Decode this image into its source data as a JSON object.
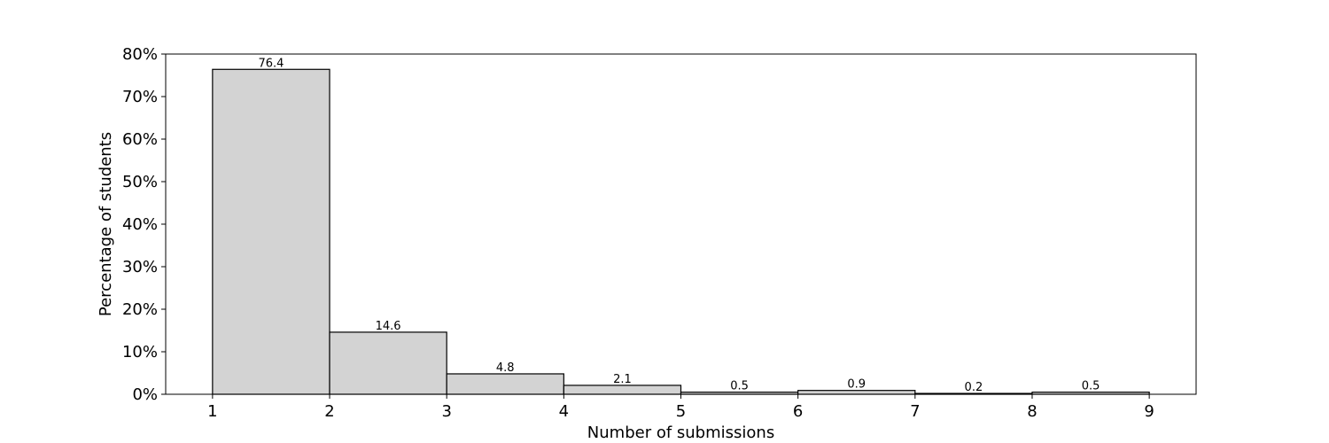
{
  "chart_data": {
    "type": "bar",
    "title": "",
    "xlabel": "Number of submissions",
    "ylabel": "Percentage of students",
    "bins": [
      {
        "start": 1,
        "end": 2,
        "value": 76.4,
        "label": "76.4"
      },
      {
        "start": 2,
        "end": 3,
        "value": 14.6,
        "label": "14.6"
      },
      {
        "start": 3,
        "end": 4,
        "value": 4.8,
        "label": "4.8"
      },
      {
        "start": 4,
        "end": 5,
        "value": 2.1,
        "label": "2.1"
      },
      {
        "start": 5,
        "end": 6,
        "value": 0.5,
        "label": "0.5"
      },
      {
        "start": 6,
        "end": 7,
        "value": 0.9,
        "label": "0.9"
      },
      {
        "start": 7,
        "end": 8,
        "value": 0.2,
        "label": "0.2"
      },
      {
        "start": 8,
        "end": 9,
        "value": 0.5,
        "label": "0.5"
      }
    ],
    "x_ticks": [
      1,
      2,
      3,
      4,
      5,
      6,
      7,
      8,
      9
    ],
    "y_ticks": [
      0,
      10,
      20,
      30,
      40,
      50,
      60,
      70,
      80
    ],
    "y_tick_labels": [
      "0%",
      "10%",
      "20%",
      "30%",
      "40%",
      "50%",
      "60%",
      "70%",
      "80%"
    ],
    "xlim": [
      0.6,
      9.4
    ],
    "ylim": [
      0,
      80
    ],
    "grid": false,
    "legend": "none",
    "bar_fill": "#d3d3d3",
    "bar_edge": "#000000"
  }
}
